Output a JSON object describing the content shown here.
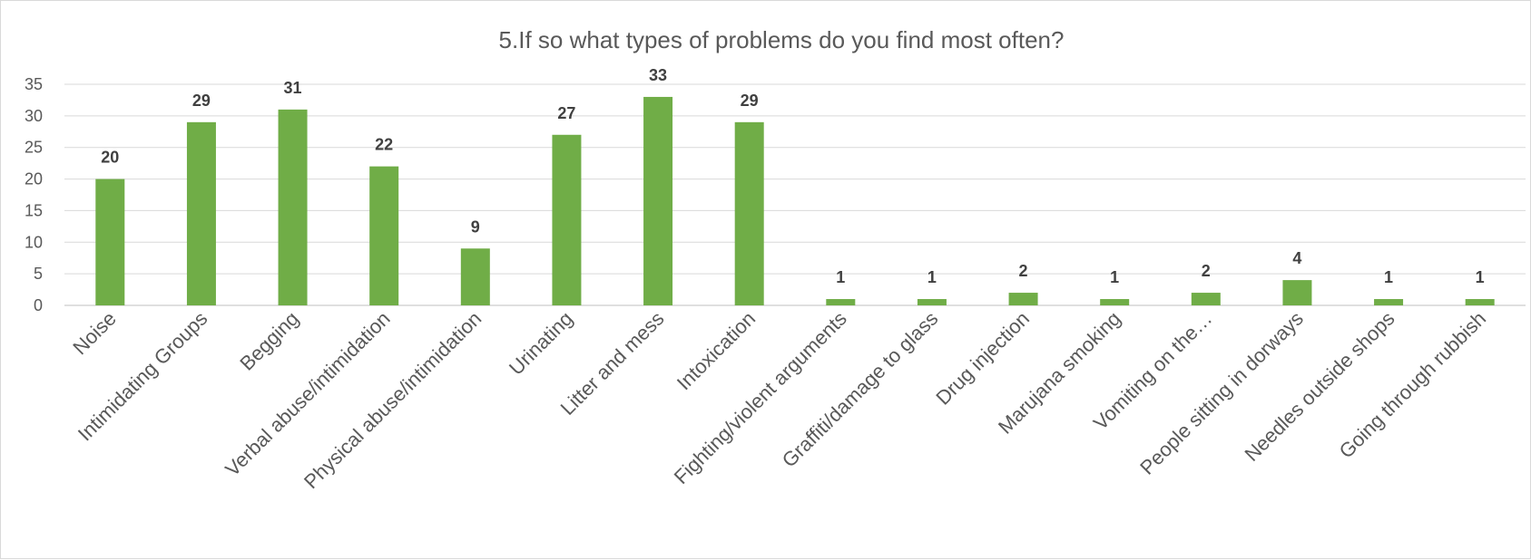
{
  "chart_data": {
    "type": "bar",
    "title": "5.If so what types of problems do you find most often?",
    "xlabel": "",
    "ylabel": "",
    "ylim": [
      0,
      35
    ],
    "yticks": [
      0,
      5,
      10,
      15,
      20,
      25,
      30,
      35
    ],
    "grid": true,
    "legend": "none",
    "bar_color": "#70ad47",
    "categories": [
      "Noise",
      "Intimidating Groups",
      "Begging",
      "Verbal abuse/intimidation",
      "Physical abuse/intimidation",
      "Urinating",
      "Litter and mess",
      "Intoxication",
      "Fighting/violent arguments",
      "Graffiti/damage to glass",
      "Drug injection",
      "Marujana smoking",
      "Vomiting on the…",
      "People sitting in dorways",
      "Needles outside shops",
      "Going through rubbish"
    ],
    "values": [
      20,
      29,
      31,
      22,
      9,
      27,
      33,
      29,
      1,
      1,
      2,
      1,
      2,
      4,
      1,
      1
    ]
  }
}
